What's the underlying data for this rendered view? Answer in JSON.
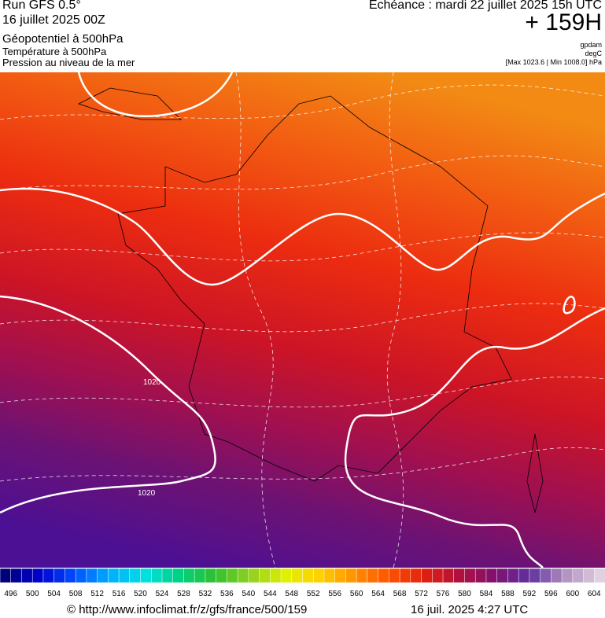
{
  "header": {
    "run": "Run GFS 0.5°",
    "date": "16 juillet 2025 00Z",
    "field1": "Géopotentiel à 500hPa",
    "field2": "Température à 500hPa",
    "field3": "Pression au niveau de la mer",
    "echeance": "Echéance : mardi 22 juillet 2025 15h UTC",
    "offset": "+ 159H",
    "unit1": "gpdam",
    "unit2": "degC",
    "range": "[Max 1023.6 | Min 1008.0] hPa"
  },
  "map": {
    "contour_labels": [
      "1020",
      "1020"
    ]
  },
  "colorbar": {
    "labels": [
      496,
      500,
      504,
      508,
      512,
      516,
      520,
      524,
      528,
      532,
      536,
      540,
      544,
      548,
      552,
      556,
      560,
      564,
      568,
      572,
      576,
      580,
      584,
      588,
      592,
      596,
      600,
      604
    ],
    "colors": [
      "#00007a",
      "#0000d0",
      "#0050ff",
      "#00b0ff",
      "#00e0e0",
      "#00d080",
      "#30c030",
      "#90d020",
      "#e0f000",
      "#ffd000",
      "#ff9000",
      "#ff5000",
      "#e02010",
      "#b01040",
      "#801070",
      "#6030a0",
      "#b090c0",
      "#e0d0e0"
    ]
  },
  "footer": {
    "url": "© http://www.infoclimat.fr/z/gfs/france/500/159",
    "stamp": "16 juil. 2025  4:27 UTC"
  }
}
